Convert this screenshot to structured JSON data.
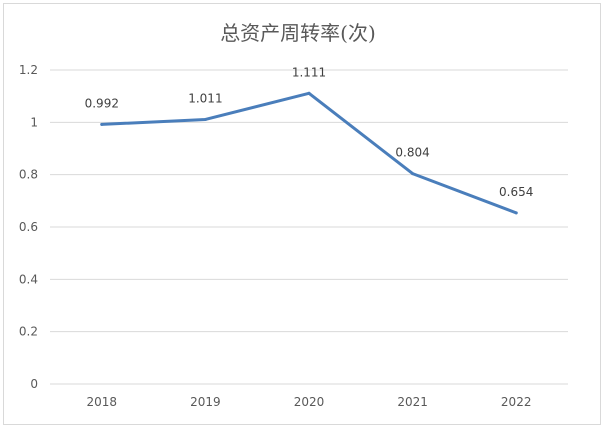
{
  "chart_data": {
    "type": "line",
    "title": "总资产周转率(次)",
    "xlabel": "",
    "ylabel": "",
    "categories": [
      "2018",
      "2019",
      "2020",
      "2021",
      "2022"
    ],
    "series": [
      {
        "values": [
          0.992,
          1.011,
          1.111,
          0.804,
          0.654
        ],
        "color": "#4a7ebb"
      }
    ],
    "data_labels": [
      "0.992",
      "1.011",
      "1.111",
      "0.804",
      "0.654"
    ],
    "yticks": [
      "0",
      "0.2",
      "0.4",
      "0.6",
      "0.8",
      "1",
      "1.2"
    ],
    "ylim": [
      0,
      1.2
    ],
    "grid": true,
    "legend": "none",
    "gridline_color": "#d9d9d9",
    "text_color": "#595959"
  }
}
